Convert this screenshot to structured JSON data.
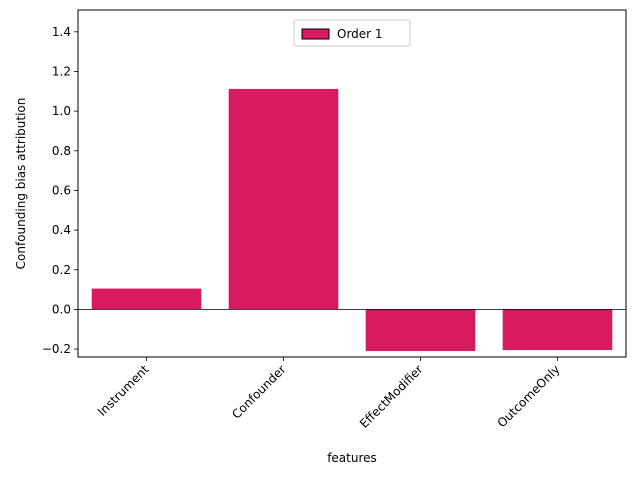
{
  "chart_data": {
    "type": "bar",
    "categories": [
      "Instrument",
      "Confounder",
      "EffectModifier",
      "OutcomeOnly"
    ],
    "series": [
      {
        "name": "Order 1",
        "values": [
          0.105,
          1.112,
          -0.21,
          -0.205
        ],
        "color": "#d81b60"
      }
    ],
    "xlabel": "features",
    "ylabel": "Confounding bias attribution",
    "ylim": [
      -0.24,
      1.51
    ],
    "yticks": [
      -0.2,
      0.0,
      0.2,
      0.4,
      0.6,
      0.8,
      1.0,
      1.2,
      1.4
    ],
    "ytick_labels": [
      "−0.2",
      "0.0",
      "0.2",
      "0.4",
      "0.6",
      "0.8",
      "1.0",
      "1.2",
      "1.4"
    ],
    "grid": false,
    "legend_position": "top-center",
    "zero_line": true
  }
}
